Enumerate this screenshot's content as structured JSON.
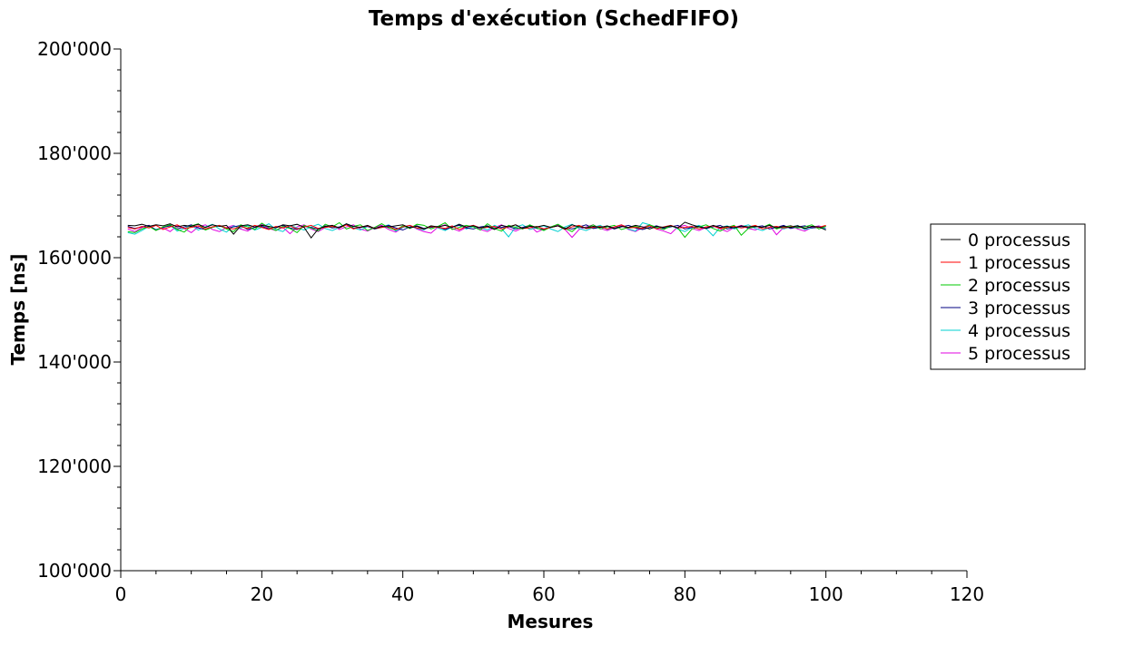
{
  "chart_data": {
    "type": "line",
    "title": "Temps d'exécution (SchedFIFO)",
    "xlabel": "Mesures",
    "ylabel": "Temps [ns]",
    "xlim": [
      0,
      120
    ],
    "ylim": [
      100000,
      200000
    ],
    "x_ticks": [
      0,
      20,
      40,
      60,
      80,
      100,
      120
    ],
    "y_ticks": [
      100000,
      120000,
      140000,
      160000,
      180000,
      200000
    ],
    "x_tick_labels": [
      "0",
      "20",
      "40",
      "60",
      "80",
      "100",
      "120"
    ],
    "y_tick_labels": [
      "100'000",
      "120'000",
      "140'000",
      "160'000",
      "180'000",
      "200'000"
    ],
    "grid": false,
    "legend": {
      "placement": "right"
    },
    "x": [
      1,
      2,
      3,
      4,
      5,
      6,
      7,
      8,
      9,
      10,
      11,
      12,
      13,
      14,
      15,
      16,
      17,
      18,
      19,
      20,
      21,
      22,
      23,
      24,
      25,
      26,
      27,
      28,
      29,
      30,
      31,
      32,
      33,
      34,
      35,
      36,
      37,
      38,
      39,
      40,
      41,
      42,
      43,
      44,
      45,
      46,
      47,
      48,
      49,
      50,
      51,
      52,
      53,
      54,
      55,
      56,
      57,
      58,
      59,
      60,
      61,
      62,
      63,
      64,
      65,
      66,
      67,
      68,
      69,
      70,
      71,
      72,
      73,
      74,
      75,
      76,
      77,
      78,
      79,
      80,
      81,
      82,
      83,
      84,
      85,
      86,
      87,
      88,
      89,
      90,
      91,
      92,
      93,
      94,
      95,
      96,
      97,
      98,
      99,
      100
    ],
    "series": [
      {
        "name": "0 processus",
        "color": "#000000",
        "values": [
          166200,
          166100,
          166400,
          166000,
          166300,
          166100,
          166500,
          165900,
          166200,
          166000,
          166400,
          165800,
          166300,
          166000,
          166200,
          164500,
          166100,
          166300,
          165900,
          166200,
          166000,
          165700,
          166300,
          166100,
          166400,
          165800,
          163800,
          165500,
          166000,
          166200,
          165700,
          166500,
          166000,
          165800,
          166200,
          165600,
          166000,
          165900,
          166100,
          166300,
          165700,
          166000,
          165500,
          166100,
          165900,
          166200,
          165800,
          166400,
          165900,
          166100,
          165700,
          166000,
          165400,
          166200,
          165900,
          166300,
          165600,
          166000,
          165900,
          166200,
          165800,
          166100,
          165500,
          166300,
          165900,
          165700,
          166000,
          165800,
          166100,
          165600,
          166000,
          165800,
          166200,
          165900,
          165500,
          166000,
          165800,
          166100,
          165700,
          166800,
          166300,
          165900,
          165600,
          166200,
          165800,
          166000,
          165700,
          166100,
          165900,
          166000,
          165800,
          166200,
          165700,
          166000,
          165800,
          166100,
          165600,
          166000,
          165900,
          165300
        ]
      },
      {
        "name": "1 processus",
        "color": "#ff0000",
        "values": [
          165800,
          165500,
          166000,
          165700,
          166200,
          165400,
          165900,
          166300,
          165600,
          165800,
          166100,
          165500,
          165900,
          166200,
          165700,
          165500,
          166000,
          165600,
          166200,
          165800,
          165400,
          166000,
          165700,
          166100,
          165500,
          165900,
          166200,
          165600,
          165800,
          166000,
          165700,
          166300,
          165500,
          165900,
          166100,
          165600,
          165800,
          166000,
          165400,
          165900,
          166200,
          165700,
          165500,
          166000,
          165800,
          165600,
          166100,
          165400,
          165900,
          166200,
          165700,
          165800,
          166000,
          165500,
          165900,
          166300,
          165600,
          165700,
          166000,
          165500,
          165800,
          166100,
          165400,
          165900,
          166200,
          165600,
          165800,
          166000,
          165500,
          165900,
          166300,
          165700,
          165800,
          165600,
          166100,
          165500,
          165900,
          166200,
          165700,
          165800,
          166000,
          165500,
          165900,
          166100,
          165600,
          165800,
          166000,
          165700,
          165900,
          166200,
          165500,
          165800,
          166000,
          165700,
          165900,
          166100,
          165600,
          166000,
          165800,
          166200
        ]
      },
      {
        "name": "2 processus",
        "color": "#00c800",
        "values": [
          165000,
          164800,
          165500,
          166000,
          165200,
          165900,
          166300,
          165400,
          164900,
          166100,
          166500,
          165300,
          165800,
          166200,
          165500,
          165000,
          166300,
          165900,
          165400,
          166600,
          165800,
          165200,
          166000,
          165600,
          164800,
          166200,
          165700,
          165100,
          166400,
          165900,
          166700,
          165500,
          166000,
          166300,
          165200,
          165800,
          166500,
          165700,
          165300,
          166100,
          165600,
          166400,
          166200,
          165500,
          166000,
          166700,
          165400,
          165800,
          166200,
          165900,
          165300,
          166500,
          165600,
          165100,
          166200,
          165800,
          165500,
          166300,
          165700,
          165200,
          165900,
          166400,
          165600,
          165000,
          166100,
          165700,
          166300,
          165500,
          165900,
          166200,
          165400,
          165800,
          166000,
          165600,
          166300,
          165800,
          165400,
          166100,
          165700,
          163900,
          165500,
          165900,
          166300,
          165600,
          165100,
          165800,
          166200,
          164300,
          165600,
          166000,
          165800,
          166400,
          165500,
          165900,
          166100,
          165700,
          165900,
          166300,
          165500,
          166000
        ]
      },
      {
        "name": "3 processus",
        "color": "#000080",
        "values": [
          166000,
          165600,
          165900,
          166200,
          165300,
          165800,
          166100,
          165500,
          165900,
          166300,
          165700,
          165400,
          165900,
          166100,
          165600,
          165900,
          166200,
          165400,
          165800,
          166000,
          165500,
          165900,
          166200,
          165700,
          165400,
          166000,
          165800,
          165500,
          166100,
          165700,
          165900,
          166400,
          165600,
          165800,
          166000,
          165500,
          165800,
          166200,
          165700,
          165300,
          165900,
          166100,
          165600,
          165800,
          166000,
          165400,
          165900,
          166200,
          165700,
          165500,
          165900,
          166100,
          165600,
          165800,
          166000,
          165500,
          165800,
          166200,
          165600,
          165400,
          165900,
          166100,
          165700,
          165500,
          165900,
          166300,
          165600,
          165800,
          166000,
          165500,
          165900,
          166200,
          165700,
          165400,
          165800,
          166100,
          165600,
          165900,
          166200,
          165500,
          165800,
          166000,
          165600,
          165900,
          166200,
          165500,
          165800,
          166000,
          165700,
          165900,
          166100,
          165500,
          165800,
          166200,
          165600,
          165900,
          166100,
          165700,
          165800,
          166000
        ]
      },
      {
        "name": "4 processus",
        "color": "#00d0d0",
        "values": [
          164800,
          164500,
          165200,
          166000,
          165400,
          165800,
          166300,
          165100,
          165600,
          166200,
          165300,
          165900,
          166400,
          165500,
          164900,
          166100,
          165700,
          166200,
          165300,
          165800,
          166500,
          165400,
          165000,
          166200,
          165700,
          165300,
          165900,
          166400,
          165600,
          165200,
          165800,
          166500,
          165700,
          165300,
          166000,
          165500,
          165900,
          166300,
          165100,
          165800,
          166200,
          165600,
          165300,
          166100,
          165700,
          165200,
          165900,
          166400,
          165500,
          166000,
          165800,
          165300,
          166200,
          165600,
          164000,
          165900,
          166300,
          165400,
          165800,
          166100,
          165500,
          165000,
          165900,
          166400,
          165600,
          165200,
          165800,
          166200,
          165400,
          165900,
          166300,
          165500,
          165100,
          166700,
          166300,
          165600,
          165900,
          166200,
          165500,
          165000,
          165800,
          166200,
          165600,
          164200,
          165800,
          166100,
          165500,
          165900,
          166300,
          165600,
          165200,
          165800,
          166000,
          165500,
          165900,
          166200,
          165400,
          165700,
          165900,
          165500
        ]
      },
      {
        "name": "5 processus",
        "color": "#e000e0",
        "values": [
          165500,
          165000,
          165800,
          166200,
          165300,
          165700,
          165000,
          166100,
          165600,
          164800,
          165900,
          166300,
          165400,
          165000,
          165800,
          166200,
          165500,
          165100,
          165900,
          166400,
          165600,
          165200,
          165800,
          164600,
          165900,
          166300,
          165500,
          165000,
          165800,
          166200,
          165400,
          165900,
          166300,
          165500,
          165100,
          165800,
          166200,
          165400,
          164900,
          165800,
          166200,
          165500,
          165000,
          164700,
          165900,
          166300,
          165600,
          165100,
          165800,
          166200,
          165400,
          165000,
          165800,
          166300,
          165600,
          165100,
          165700,
          166200,
          164900,
          165500,
          165900,
          166300,
          165400,
          163900,
          165400,
          165900,
          166300,
          165600,
          165200,
          165800,
          166200,
          165400,
          165000,
          165800,
          166300,
          165500,
          165100,
          164600,
          165900,
          166200,
          165600,
          165200,
          165800,
          166100,
          165500,
          165000,
          165800,
          166200,
          165600,
          165300,
          165900,
          166200,
          164400,
          165800,
          166200,
          165500,
          165100,
          165800,
          166100,
          165600
        ]
      }
    ]
  }
}
